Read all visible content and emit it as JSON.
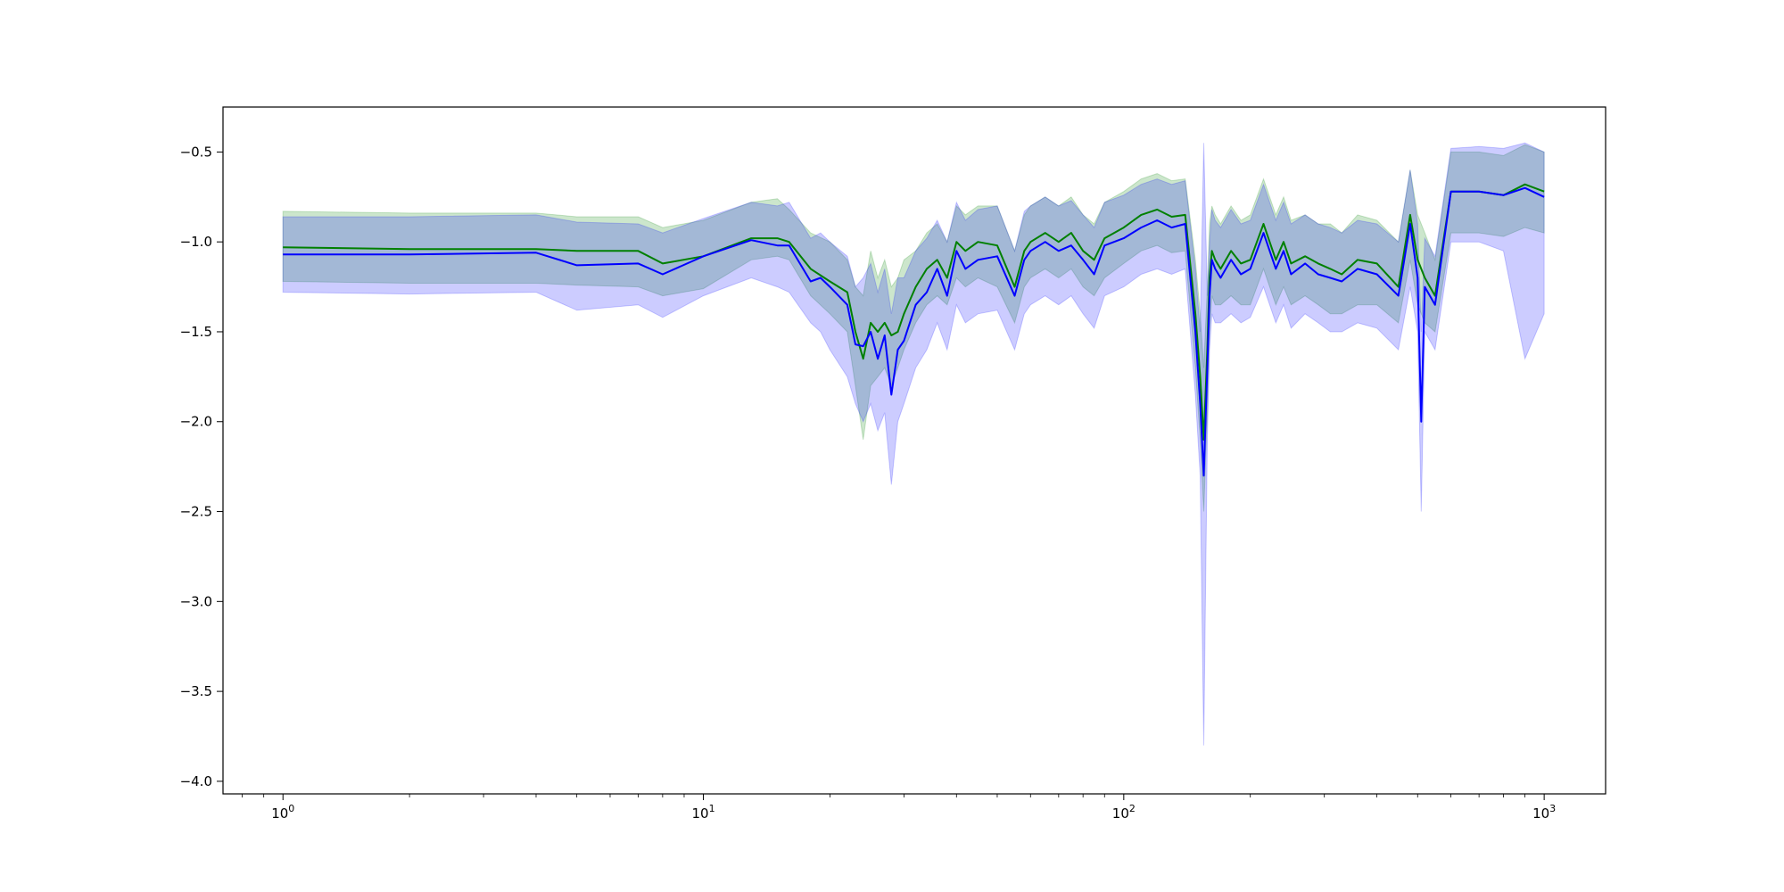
{
  "chart_data": {
    "type": "line",
    "title": "",
    "xlabel": "",
    "ylabel": "",
    "x_scale": "log",
    "xlim": [
      0.72,
      1400
    ],
    "ylim": [
      -4.07,
      -0.25
    ],
    "grid": false,
    "legend": "none",
    "x_ticks": [
      {
        "value": 1,
        "base": "10",
        "exp": "0"
      },
      {
        "value": 10,
        "base": "10",
        "exp": "1"
      },
      {
        "value": 100,
        "base": "10",
        "exp": "2"
      },
      {
        "value": 1000,
        "base": "10",
        "exp": "3"
      }
    ],
    "y_ticks": [
      {
        "value": -0.5,
        "label": "−0.5"
      },
      {
        "value": -1.0,
        "label": "−1.0"
      },
      {
        "value": -1.5,
        "label": "−1.5"
      },
      {
        "value": -2.0,
        "label": "−2.0"
      },
      {
        "value": -2.5,
        "label": "−2.5"
      },
      {
        "value": -3.0,
        "label": "−3.0"
      },
      {
        "value": -3.5,
        "label": "−3.5"
      },
      {
        "value": -4.0,
        "label": "−4.0"
      }
    ],
    "series": [
      {
        "color": "#008000",
        "band_color": "#008000",
        "band_opacity": 0.2,
        "x": [
          1,
          2,
          4,
          5,
          7,
          8,
          10,
          13,
          15,
          16,
          18,
          20,
          22,
          23,
          24,
          25,
          26,
          27,
          28,
          29,
          30,
          32,
          34,
          36,
          38,
          40,
          42,
          45,
          50,
          55,
          58,
          60,
          65,
          70,
          75,
          80,
          85,
          90,
          100,
          110,
          120,
          130,
          140,
          148,
          152,
          155,
          158,
          160,
          162,
          165,
          170,
          180,
          190,
          200,
          215,
          230,
          240,
          250,
          270,
          290,
          310,
          330,
          360,
          400,
          450,
          480,
          500,
          520,
          550,
          600,
          700,
          800,
          900,
          1000
        ],
        "y": [
          -1.03,
          -1.04,
          -1.04,
          -1.05,
          -1.05,
          -1.12,
          -1.08,
          -0.98,
          -0.98,
          -1.0,
          -1.15,
          -1.22,
          -1.28,
          -1.5,
          -1.65,
          -1.45,
          -1.5,
          -1.45,
          -1.52,
          -1.5,
          -1.4,
          -1.25,
          -1.15,
          -1.1,
          -1.2,
          -1.0,
          -1.05,
          -1.0,
          -1.02,
          -1.25,
          -1.05,
          -1.0,
          -0.95,
          -1.0,
          -0.95,
          -1.05,
          -1.1,
          -0.98,
          -0.92,
          -0.85,
          -0.82,
          -0.86,
          -0.85,
          -1.4,
          -1.75,
          -2.1,
          -1.6,
          -1.2,
          -1.05,
          -1.1,
          -1.15,
          -1.05,
          -1.12,
          -1.1,
          -0.9,
          -1.1,
          -1.0,
          -1.12,
          -1.08,
          -1.12,
          -1.15,
          -1.18,
          -1.1,
          -1.12,
          -1.25,
          -0.85,
          -1.1,
          -1.2,
          -1.3,
          -0.72,
          -0.72,
          -0.74,
          -0.68,
          -0.72
        ],
        "lower": [
          -1.22,
          -1.23,
          -1.23,
          -1.24,
          -1.25,
          -1.3,
          -1.26,
          -1.1,
          -1.08,
          -1.1,
          -1.3,
          -1.4,
          -1.5,
          -1.8,
          -2.1,
          -1.8,
          -1.75,
          -1.7,
          -1.8,
          -1.7,
          -1.6,
          -1.45,
          -1.35,
          -1.3,
          -1.35,
          -1.2,
          -1.25,
          -1.2,
          -1.25,
          -1.45,
          -1.25,
          -1.2,
          -1.15,
          -1.2,
          -1.15,
          -1.25,
          -1.3,
          -1.2,
          -1.12,
          -1.05,
          -1.02,
          -1.06,
          -1.05,
          -1.7,
          -2.1,
          -2.5,
          -1.95,
          -1.5,
          -1.3,
          -1.35,
          -1.35,
          -1.3,
          -1.35,
          -1.35,
          -1.15,
          -1.35,
          -1.25,
          -1.35,
          -1.3,
          -1.35,
          -1.4,
          -1.4,
          -1.35,
          -1.35,
          -1.45,
          -1.1,
          -1.35,
          -1.45,
          -1.5,
          -0.95,
          -0.95,
          -0.97,
          -0.92,
          -0.95
        ],
        "upper": [
          -0.83,
          -0.84,
          -0.84,
          -0.86,
          -0.86,
          -0.92,
          -0.88,
          -0.78,
          -0.76,
          -0.82,
          -0.95,
          -1.0,
          -1.1,
          -1.25,
          -1.3,
          -1.05,
          -1.2,
          -1.1,
          -1.25,
          -1.2,
          -1.1,
          -1.05,
          -0.95,
          -0.9,
          -1.0,
          -0.8,
          -0.85,
          -0.8,
          -0.8,
          -1.05,
          -0.85,
          -0.8,
          -0.75,
          -0.8,
          -0.75,
          -0.85,
          -0.9,
          -0.78,
          -0.72,
          -0.65,
          -0.62,
          -0.66,
          -0.65,
          -1.1,
          -1.4,
          -1.7,
          -1.25,
          -0.9,
          -0.8,
          -0.85,
          -0.9,
          -0.8,
          -0.88,
          -0.85,
          -0.65,
          -0.85,
          -0.75,
          -0.88,
          -0.85,
          -0.9,
          -0.9,
          -0.95,
          -0.85,
          -0.88,
          -1.0,
          -0.6,
          -0.85,
          -0.95,
          -1.1,
          -0.5,
          -0.5,
          -0.52,
          -0.46,
          -0.5
        ]
      },
      {
        "color": "#0000ff",
        "band_color": "#0000ff",
        "band_opacity": 0.2,
        "x": [
          1,
          2,
          4,
          5,
          7,
          8,
          10,
          13,
          15,
          16,
          18,
          19,
          20,
          22,
          23,
          24,
          25,
          26,
          27,
          28,
          29,
          30,
          32,
          34,
          36,
          38,
          40,
          42,
          45,
          50,
          55,
          58,
          60,
          65,
          70,
          75,
          80,
          85,
          90,
          100,
          110,
          120,
          130,
          140,
          148,
          152,
          155,
          158,
          160,
          162,
          165,
          170,
          180,
          190,
          200,
          215,
          230,
          240,
          250,
          270,
          290,
          310,
          330,
          360,
          400,
          450,
          480,
          500,
          510,
          520,
          550,
          600,
          700,
          800,
          900,
          1000
        ],
        "y": [
          -1.07,
          -1.07,
          -1.06,
          -1.13,
          -1.12,
          -1.18,
          -1.08,
          -0.99,
          -1.02,
          -1.02,
          -1.22,
          -1.2,
          -1.25,
          -1.35,
          -1.57,
          -1.58,
          -1.5,
          -1.65,
          -1.52,
          -1.85,
          -1.6,
          -1.55,
          -1.35,
          -1.28,
          -1.15,
          -1.3,
          -1.05,
          -1.15,
          -1.1,
          -1.08,
          -1.3,
          -1.1,
          -1.05,
          -1.0,
          -1.05,
          -1.02,
          -1.1,
          -1.18,
          -1.02,
          -0.98,
          -0.92,
          -0.88,
          -0.92,
          -0.9,
          -1.5,
          -1.9,
          -2.3,
          -1.7,
          -1.3,
          -1.1,
          -1.15,
          -1.2,
          -1.1,
          -1.18,
          -1.15,
          -0.95,
          -1.15,
          -1.05,
          -1.18,
          -1.12,
          -1.18,
          -1.2,
          -1.22,
          -1.15,
          -1.18,
          -1.3,
          -0.9,
          -1.2,
          -2.0,
          -1.25,
          -1.35,
          -0.72,
          -0.72,
          -0.74,
          -0.7,
          -0.75
        ],
        "lower": [
          -1.28,
          -1.29,
          -1.28,
          -1.38,
          -1.35,
          -1.42,
          -1.3,
          -1.2,
          -1.25,
          -1.28,
          -1.45,
          -1.5,
          -1.6,
          -1.75,
          -1.9,
          -2.0,
          -1.9,
          -2.05,
          -1.95,
          -2.35,
          -2.0,
          -1.9,
          -1.7,
          -1.6,
          -1.45,
          -1.6,
          -1.35,
          -1.45,
          -1.4,
          -1.38,
          -1.6,
          -1.4,
          -1.35,
          -1.3,
          -1.35,
          -1.3,
          -1.4,
          -1.48,
          -1.3,
          -1.25,
          -1.18,
          -1.15,
          -1.18,
          -1.15,
          -1.85,
          -2.3,
          -3.8,
          -2.1,
          -1.6,
          -1.4,
          -1.45,
          -1.45,
          -1.4,
          -1.45,
          -1.42,
          -1.25,
          -1.45,
          -1.35,
          -1.48,
          -1.4,
          -1.45,
          -1.5,
          -1.5,
          -1.45,
          -1.48,
          -1.6,
          -1.25,
          -1.5,
          -2.5,
          -1.5,
          -1.6,
          -1.0,
          -1.0,
          -1.05,
          -1.65,
          -1.4
        ],
        "upper": [
          -0.86,
          -0.86,
          -0.85,
          -0.89,
          -0.9,
          -0.95,
          -0.87,
          -0.78,
          -0.8,
          -0.78,
          -0.98,
          -0.95,
          -1.0,
          -1.08,
          -1.25,
          -1.2,
          -1.12,
          -1.28,
          -1.15,
          -1.4,
          -1.2,
          -1.2,
          -1.05,
          -0.98,
          -0.88,
          -1.0,
          -0.78,
          -0.88,
          -0.82,
          -0.8,
          -1.05,
          -0.83,
          -0.8,
          -0.75,
          -0.8,
          -0.77,
          -0.85,
          -0.92,
          -0.78,
          -0.74,
          -0.68,
          -0.65,
          -0.68,
          -0.66,
          -1.15,
          -1.5,
          -0.45,
          -1.3,
          -1.0,
          -0.82,
          -0.88,
          -0.92,
          -0.82,
          -0.9,
          -0.88,
          -0.68,
          -0.88,
          -0.78,
          -0.9,
          -0.85,
          -0.9,
          -0.92,
          -0.95,
          -0.88,
          -0.9,
          -1.0,
          -0.6,
          -0.9,
          -1.5,
          -0.98,
          -1.08,
          -0.48,
          -0.47,
          -0.48,
          -0.45,
          -0.5
        ]
      }
    ]
  }
}
